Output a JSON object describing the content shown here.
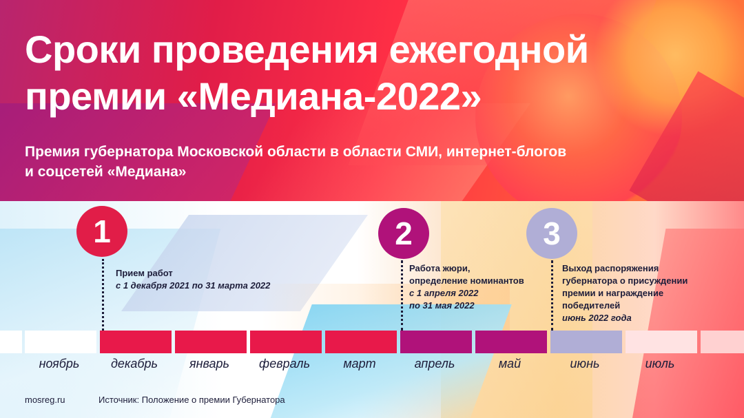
{
  "header": {
    "title_line1": "Сроки проведения ежегодной",
    "title_line2": "премии «Медиана-2022»",
    "subtitle_line1": "Премия губернатора Московской области в области СМИ, интернет-блогов",
    "subtitle_line2": "и соцсетей «Медиана»"
  },
  "steps": [
    {
      "number": "1",
      "color": "#e11d48",
      "lines": [
        "Прием работ"
      ],
      "dates": [
        "с 1 декабря 2021 по 31 марта 2022"
      ]
    },
    {
      "number": "2",
      "color": "#b0127a",
      "lines": [
        "Работа жюри,",
        "определение номинантов"
      ],
      "dates": [
        "с 1 апреля 2022",
        "по 31 мая 2022"
      ]
    },
    {
      "number": "3",
      "color": "#b0aed6",
      "lines": [
        "Выход распоряжения",
        "губернатора о присуждении",
        "премии и награждение",
        "победителей"
      ],
      "dates": [
        "июнь 2022 года"
      ]
    }
  ],
  "timeline": {
    "months": [
      {
        "label": "ноябрь",
        "color": "#ffffff"
      },
      {
        "label": "декабрь",
        "color": "#e8194a"
      },
      {
        "label": "январь",
        "color": "#e8194a"
      },
      {
        "label": "февраль",
        "color": "#e8194a"
      },
      {
        "label": "март",
        "color": "#e8194a"
      },
      {
        "label": "апрель",
        "color": "#b0127a"
      },
      {
        "label": "май",
        "color": "#b0127a"
      },
      {
        "label": "июнь",
        "color": "#b0aed6"
      },
      {
        "label": "июль",
        "color": "#ffe3e3"
      }
    ]
  },
  "footer": {
    "site": "mosreg.ru",
    "source": "Источник: Положение о премии Губернатора"
  }
}
